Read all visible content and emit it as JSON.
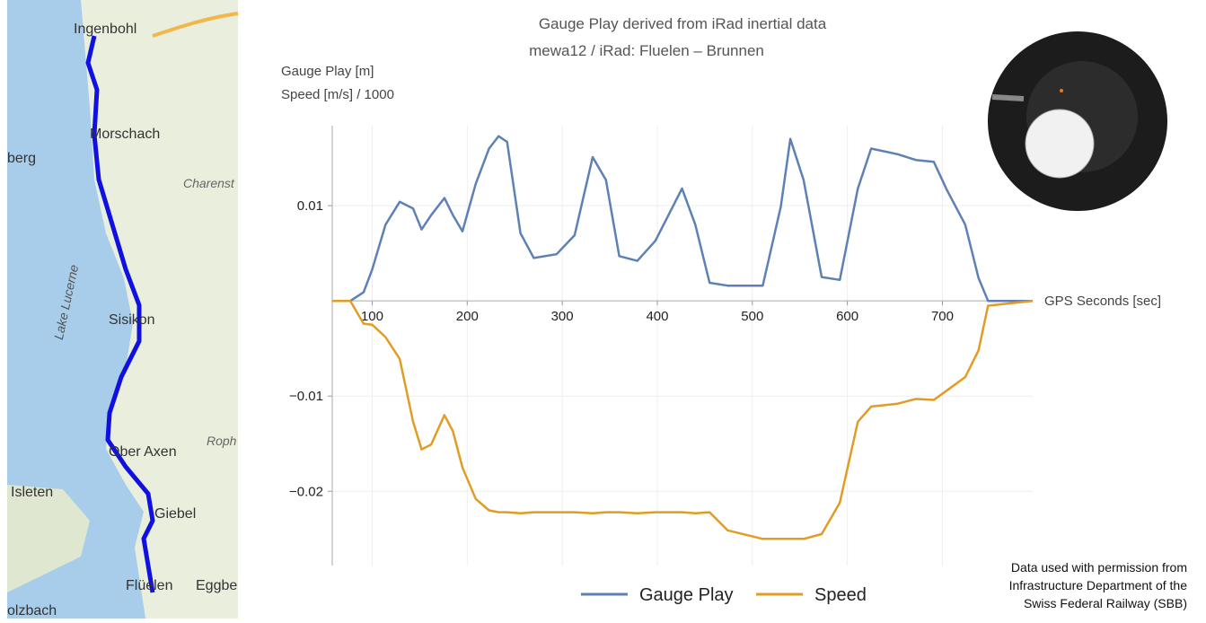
{
  "chart_data": {
    "type": "line",
    "title": "Gauge Play derived from iRad inertial data",
    "subtitle": "mewa12 / iRad: Fluelen – Brunnen",
    "y_label_1": "Gauge Play [m]",
    "y_label_2": "Speed [m/s] / 1000",
    "x_label": "GPS Seconds [sec]",
    "x": [
      58,
      77,
      91,
      100,
      114,
      129,
      143,
      152,
      162,
      176,
      185,
      195,
      209,
      223,
      233,
      242,
      256,
      270,
      294,
      313,
      332,
      346,
      360,
      379,
      398,
      426,
      440,
      455,
      474,
      511,
      530,
      540,
      554,
      573,
      592,
      611,
      625,
      653,
      672,
      691,
      705,
      724,
      738,
      748,
      795
    ],
    "series": [
      {
        "name": "Gauge Play",
        "color": "#5e81b5",
        "values": [
          0,
          0,
          0.0009,
          0.0033,
          0.008,
          0.0104,
          0.0097,
          0.0075,
          0.009,
          0.0108,
          0.009,
          0.0073,
          0.0123,
          0.016,
          0.0173,
          0.0167,
          0.0071,
          0.0045,
          0.0049,
          0.0069,
          0.0151,
          0.0127,
          0.0047,
          0.0042,
          0.0063,
          0.0118,
          0.008,
          0.0019,
          0.0016,
          0.0016,
          0.0099,
          0.017,
          0.0127,
          0.0025,
          0.0022,
          0.0118,
          0.016,
          0.0154,
          0.0148,
          0.0146,
          0.0116,
          0.008,
          0.0024,
          0,
          0
        ]
      },
      {
        "name": "Speed",
        "color": "#e19c24",
        "values": [
          0,
          0,
          -0.0024,
          -0.0025,
          -0.0038,
          -0.0061,
          -0.0127,
          -0.0156,
          -0.0151,
          -0.012,
          -0.0137,
          -0.0175,
          -0.0208,
          -0.022,
          -0.0222,
          -0.0222,
          -0.0223,
          -0.0222,
          -0.0222,
          -0.0222,
          -0.0223,
          -0.0222,
          -0.0222,
          -0.0223,
          -0.0222,
          -0.0222,
          -0.0223,
          -0.0222,
          -0.0241,
          -0.025,
          -0.025,
          -0.025,
          -0.025,
          -0.0245,
          -0.0212,
          -0.0127,
          -0.0111,
          -0.0108,
          -0.0103,
          -0.0104,
          -0.0094,
          -0.008,
          -0.0052,
          -0.0005,
          0
        ]
      }
    ],
    "xlim": [
      58,
      795
    ],
    "ylim": [
      -0.0278,
      0.0184
    ],
    "xticks": [
      100,
      200,
      300,
      400,
      500,
      600,
      700
    ],
    "yticks": [
      {
        "value": -0.02,
        "label": "−0.02"
      },
      {
        "value": -0.01,
        "label": "−0.01"
      },
      0.01
    ],
    "grid": true
  },
  "map": {
    "labels": [
      "Ingenbohl",
      "Morschach",
      "berg",
      "Charenst",
      "Lake Lucerne",
      "Sisikon",
      "Ober Axen",
      "Roph",
      "Isleten",
      "Giebel",
      "Flüelen",
      "Eggbe",
      "olzbach"
    ]
  },
  "credit": [
    "Data used with permission from",
    "Infrastructure Department of the",
    "Swiss Federal Railway (SBB)"
  ]
}
